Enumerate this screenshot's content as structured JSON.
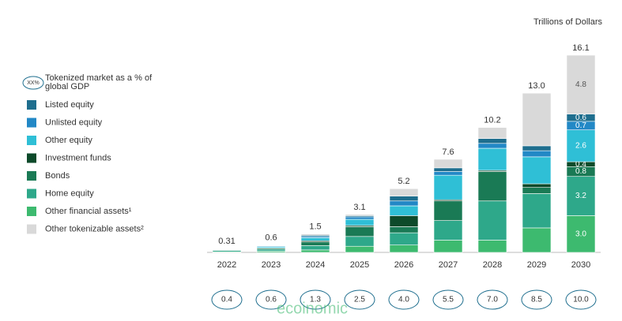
{
  "chart_data": {
    "type": "stacked-bar",
    "units": "Trillions of Dollars",
    "legend_note_badge": "XX%",
    "legend_note": "Tokenized market as a % of global GDP",
    "categories": [
      "2022",
      "2023",
      "2024",
      "2025",
      "2026",
      "2027",
      "2028",
      "2029",
      "2030"
    ],
    "series": [
      {
        "name": "Other financial assets¹",
        "color": "#3dba6f",
        "values": [
          0.05,
          0.1,
          0.2,
          0.5,
          0.6,
          1.0,
          1.0,
          2.0,
          3.0
        ],
        "value_labels": [
          null,
          null,
          null,
          null,
          null,
          null,
          null,
          null,
          "3.0"
        ]
      },
      {
        "name": "Home equity",
        "color": "#2ea88a",
        "values": [
          0.1,
          0.15,
          0.35,
          0.8,
          1.0,
          1.6,
          3.2,
          2.8,
          3.2
        ],
        "value_labels": [
          null,
          null,
          null,
          null,
          null,
          null,
          null,
          null,
          "3.2"
        ]
      },
      {
        "name": "Bonds",
        "color": "#1a7a55",
        "values": [
          0.05,
          0.1,
          0.3,
          0.8,
          0.5,
          1.6,
          2.4,
          0.5,
          0.8
        ],
        "value_labels": [
          null,
          null,
          null,
          null,
          null,
          null,
          null,
          null,
          "0.8"
        ]
      },
      {
        "name": "Investment funds",
        "color": "#0d4a2a",
        "values": [
          0.02,
          0.03,
          0.1,
          0.1,
          0.9,
          0.1,
          0.1,
          0.3,
          0.4
        ],
        "value_labels": [
          null,
          null,
          null,
          null,
          null,
          null,
          null,
          null,
          "0.4"
        ]
      },
      {
        "name": "Other equity",
        "color": "#2fbfd6",
        "values": [
          0.04,
          0.1,
          0.25,
          0.5,
          0.8,
          2.0,
          1.8,
          2.2,
          2.6
        ],
        "value_labels": [
          null,
          null,
          null,
          null,
          null,
          null,
          null,
          null,
          "2.6"
        ]
      },
      {
        "name": "Unlisted equity",
        "color": "#2288c6",
        "values": [
          0.02,
          0.05,
          0.1,
          0.2,
          0.4,
          0.3,
          0.4,
          0.5,
          0.7
        ],
        "value_labels": [
          null,
          null,
          null,
          null,
          null,
          null,
          null,
          null,
          "0.7"
        ]
      },
      {
        "name": "Listed equity",
        "color": "#1e6e8e",
        "values": [
          0.01,
          0.03,
          0.1,
          0.1,
          0.4,
          0.3,
          0.4,
          0.4,
          0.6
        ],
        "value_labels": [
          null,
          null,
          null,
          null,
          null,
          null,
          null,
          null,
          "0.6"
        ]
      },
      {
        "name": "Other tokenizable assets²",
        "color": "#d9d9d9",
        "values": [
          0.02,
          0.04,
          0.1,
          0.1,
          0.6,
          0.7,
          0.9,
          4.3,
          4.8
        ],
        "value_labels": [
          null,
          null,
          null,
          null,
          null,
          null,
          null,
          null,
          "4.8"
        ]
      }
    ],
    "totals": [
      0.31,
      0.6,
      1.5,
      3.1,
      5.2,
      7.6,
      10.2,
      13.0,
      16.1
    ],
    "total_labels": [
      "0.31",
      "0.6",
      "1.5",
      "3.1",
      "5.2",
      "7.6",
      "10.2",
      "13.0",
      "16.1"
    ],
    "gdp_share_labels": [
      "0.4",
      "0.6",
      "1.3",
      "2.5",
      "4.0",
      "5.5",
      "7.0",
      "8.5",
      "10.0"
    ],
    "ylim": [
      0,
      17
    ],
    "watermark": "ecoinomic"
  }
}
